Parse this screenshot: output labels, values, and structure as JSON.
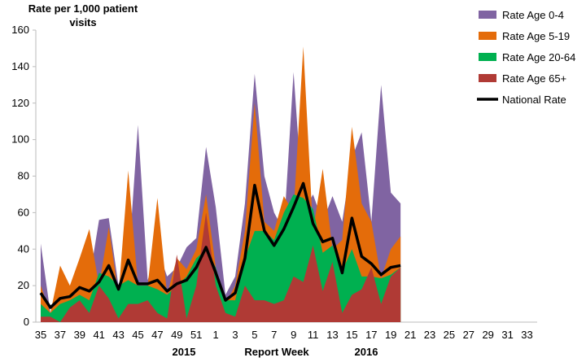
{
  "chart_data": {
    "type": "area",
    "ylabel": "Rate per 1,000 patient visits",
    "xlabel": "Report Week",
    "x_group_labels": [
      "2015",
      "2016"
    ],
    "categories": [
      "35",
      null,
      "37",
      null,
      "39",
      null,
      "41",
      null,
      "43",
      null,
      "45",
      null,
      "47",
      null,
      "49",
      null,
      "51",
      null,
      "1",
      null,
      "3",
      null,
      "5",
      null,
      "7",
      null,
      "9",
      null,
      "11",
      null,
      "13",
      null,
      "15",
      null,
      "17",
      null,
      "19",
      null,
      "21",
      null,
      "23",
      null,
      "25",
      null,
      "27",
      null,
      "29",
      null,
      "31",
      null,
      "33"
    ],
    "ylim": [
      0,
      160
    ],
    "yticks": [
      0,
      20,
      40,
      60,
      80,
      100,
      120,
      140,
      160
    ],
    "grid": false,
    "legend": "top-right",
    "series": [
      {
        "name": "Rate Age 0-4",
        "color": "#8064a2",
        "values": [
          43,
          5,
          20,
          15,
          25,
          23,
          56,
          57,
          20,
          30,
          108,
          23,
          40,
          25,
          30,
          41,
          46,
          96,
          63,
          15,
          25,
          65,
          136,
          80,
          60,
          50,
          137,
          60,
          70,
          55,
          69,
          55,
          90,
          104,
          55,
          130,
          71,
          65,
          null,
          null,
          null,
          null,
          null,
          null,
          null,
          null,
          null,
          null,
          null,
          null,
          null
        ]
      },
      {
        "name": "Rate Age 5-19",
        "color": "#e46c0a",
        "values": [
          20,
          5,
          31,
          20,
          35,
          51,
          20,
          52,
          15,
          83,
          20,
          20,
          68,
          15,
          35,
          29,
          40,
          70,
          30,
          10,
          20,
          50,
          120,
          55,
          50,
          69,
          60,
          151,
          50,
          84,
          40,
          45,
          107,
          65,
          55,
          24,
          40,
          47,
          null,
          null,
          null,
          null,
          null,
          null,
          null,
          null,
          null,
          null,
          null,
          null,
          null
        ]
      },
      {
        "name": "Rate Age 20-64",
        "color": "#00b050",
        "values": [
          10,
          5,
          10,
          12,
          15,
          12,
          27,
          25,
          20,
          23,
          20,
          20,
          18,
          15,
          20,
          25,
          35,
          40,
          30,
          12,
          12,
          35,
          50,
          50,
          45,
          60,
          70,
          68,
          62,
          38,
          42,
          28,
          40,
          25,
          25,
          24,
          26,
          30,
          null,
          null,
          null,
          null,
          null,
          null,
          null,
          null,
          null,
          null,
          null,
          null,
          null
        ]
      },
      {
        "name": "Rate Age 65+",
        "color": "#b03a35",
        "values": [
          3,
          3,
          0,
          8,
          12,
          5,
          20,
          13,
          2,
          10,
          10,
          12,
          5,
          2,
          37,
          2,
          20,
          60,
          20,
          5,
          3,
          20,
          12,
          12,
          10,
          12,
          25,
          22,
          42,
          17,
          33,
          5,
          15,
          18,
          30,
          10,
          25,
          30,
          null,
          null,
          null,
          null,
          null,
          null,
          null,
          null,
          null,
          null,
          null,
          null,
          null
        ]
      },
      {
        "name": "National Rate",
        "color": "#000000",
        "line": true,
        "values": [
          16,
          8,
          13,
          14,
          19,
          17,
          22,
          31,
          18,
          34,
          21,
          21,
          23,
          17,
          21,
          23,
          30,
          41,
          27,
          12,
          16,
          35,
          75,
          50,
          42,
          51,
          63,
          76,
          54,
          44,
          46,
          27,
          57,
          36,
          32,
          26,
          30,
          31,
          null,
          null,
          null,
          null,
          null,
          null,
          null,
          null,
          null,
          null,
          null,
          null,
          null
        ]
      }
    ]
  }
}
